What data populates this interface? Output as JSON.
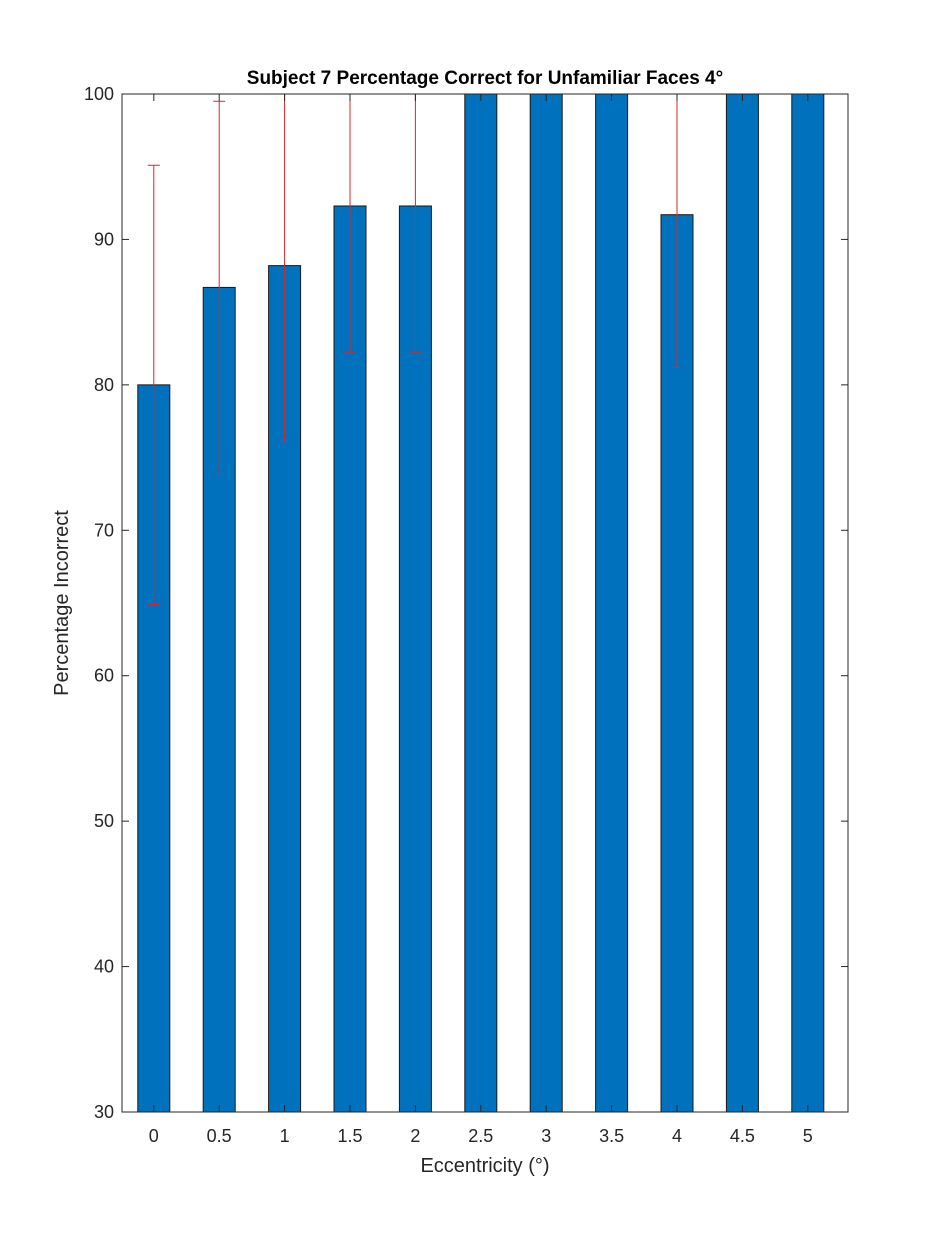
{
  "chart_data": {
    "type": "bar",
    "title": "Subject 7 Percentage Correct for Unfamiliar Faces 4°",
    "xlabel": "Eccentricity (°)",
    "ylabel": "Percentage Incorrect",
    "categories": [
      "0",
      "0.5",
      "1",
      "1.5",
      "2",
      "2.5",
      "3",
      "3.5",
      "4",
      "4.5",
      "5"
    ],
    "values": [
      80,
      86.7,
      88.2,
      92.3,
      92.3,
      100,
      100,
      100,
      91.7,
      100,
      100
    ],
    "error_upper": [
      95.1,
      99.5,
      100,
      100,
      100,
      100,
      100,
      100,
      100,
      100,
      100
    ],
    "error_lower": [
      64.9,
      73.9,
      76.1,
      82.2,
      82.2,
      100,
      100,
      100,
      81.2,
      100,
      100
    ],
    "ylim": [
      30,
      100
    ],
    "yticks": [
      30,
      40,
      50,
      60,
      70,
      80,
      90,
      100
    ],
    "grid": false,
    "legend": "none",
    "bar_color": "#0072BD",
    "error_color": "#D62728"
  }
}
